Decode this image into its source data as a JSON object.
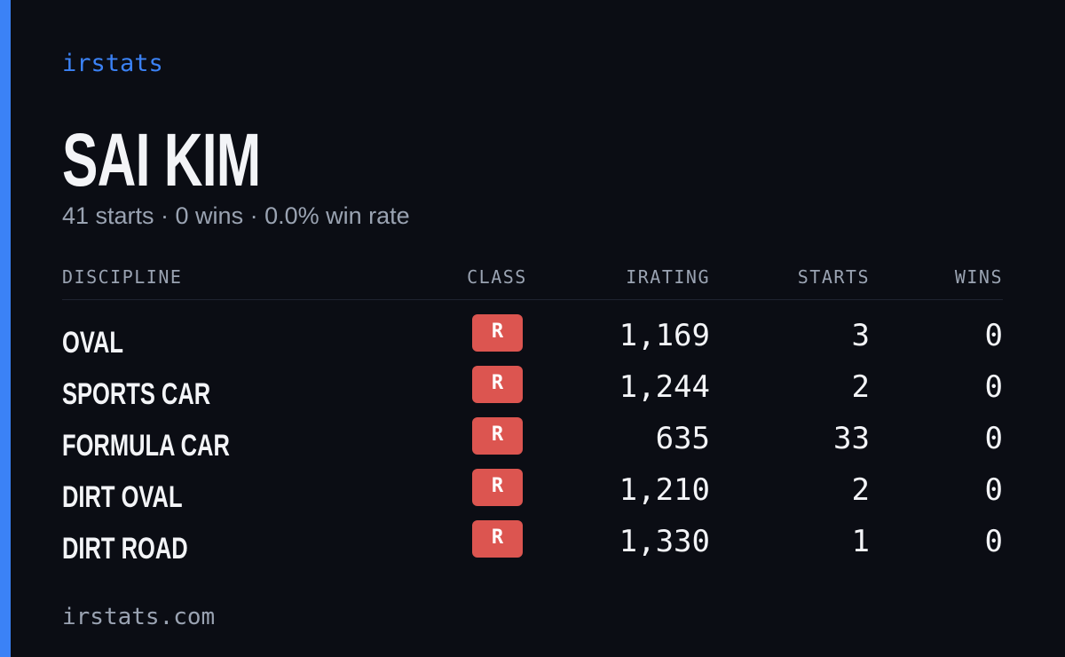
{
  "header": {
    "brand": "irstats",
    "name": "SAI KIM",
    "summary": "41 starts · 0 wins · 0.0% win rate"
  },
  "table": {
    "columns": [
      "DISCIPLINE",
      "CLASS",
      "IRATING",
      "STARTS",
      "WINS"
    ],
    "rows": [
      [
        "OVAL",
        "R",
        "1,169",
        "3",
        "0"
      ],
      [
        "SPORTS CAR",
        "R",
        "1,244",
        "2",
        "0"
      ],
      [
        "FORMULA CAR",
        "R",
        "635",
        "33",
        "0"
      ],
      [
        "DIRT OVAL",
        "R",
        "1,210",
        "2",
        "0"
      ],
      [
        "DIRT ROAD",
        "R",
        "1,330",
        "1",
        "0"
      ]
    ]
  },
  "footer": {
    "site": "irstats.com"
  }
}
